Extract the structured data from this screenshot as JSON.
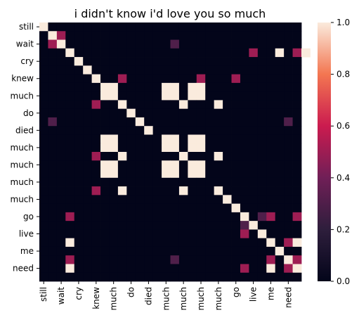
{
  "chart_data": {
    "type": "heatmap",
    "title": "i didn't know i'd love you so much",
    "row_tick_labels": [
      "still",
      "wait",
      "cry",
      "knew",
      "much",
      "do",
      "died",
      "much",
      "much",
      "much",
      "much",
      "go",
      "live",
      "me",
      "need"
    ],
    "col_tick_labels": [
      "still",
      "wait",
      "cry",
      "knew",
      "much",
      "do",
      "died",
      "much",
      "much",
      "much",
      "much",
      "go",
      "live",
      "me",
      "need"
    ],
    "colorbar": {
      "min": 0.0,
      "max": 1.0,
      "tick_labels": [
        "0.0",
        "0.2",
        "0.4",
        "0.6",
        "0.8",
        "1.0"
      ]
    },
    "grid": false,
    "legend": "colorbar-right",
    "rows": [
      "still",
      "",
      "wait",
      "",
      "cry",
      "",
      "knew",
      "",
      "much",
      "",
      "do",
      "",
      "died",
      "",
      "much",
      "",
      "much",
      "",
      "much",
      "",
      "much",
      "",
      "go",
      "",
      "live",
      "",
      "me",
      "",
      "need",
      ""
    ],
    "cols": [
      "still",
      "",
      "wait",
      "",
      "cry",
      "",
      "knew",
      "",
      "much",
      "",
      "do",
      "",
      "died",
      "",
      "much",
      "",
      "much",
      "",
      "much",
      "",
      "much",
      "",
      "go",
      "",
      "live",
      "",
      "me",
      "",
      "need",
      ""
    ],
    "values": [
      [
        1,
        0,
        0,
        0,
        0,
        0,
        0,
        0,
        0,
        0,
        0,
        0,
        0,
        0,
        0,
        0,
        0,
        0,
        0,
        0,
        0,
        0,
        0,
        0,
        0,
        0,
        0,
        0,
        0,
        0
      ],
      [
        0,
        1,
        0.5,
        0,
        0,
        0,
        0,
        0,
        0,
        0,
        0,
        0,
        0,
        0,
        0,
        0,
        0,
        0,
        0,
        0,
        0,
        0,
        0,
        0,
        0,
        0,
        0,
        0,
        0,
        0
      ],
      [
        0,
        0.5,
        1,
        0,
        0,
        0,
        0,
        0,
        0,
        0,
        0,
        0,
        0,
        0,
        0,
        0.3,
        0,
        0,
        0,
        0,
        0,
        0,
        0,
        0,
        0,
        0,
        0,
        0,
        0,
        0
      ],
      [
        0,
        0,
        0,
        1,
        0,
        0,
        0,
        0,
        0,
        0,
        0,
        0,
        0,
        0,
        0,
        0,
        0,
        0,
        0,
        0,
        0,
        0,
        0,
        0,
        0.5,
        0,
        0,
        1,
        0,
        0.5,
        1
      ],
      [
        0,
        0,
        0,
        0,
        1,
        0,
        0,
        0,
        0,
        0,
        0,
        0,
        0,
        0,
        0,
        0,
        0,
        0,
        0,
        0,
        0,
        0,
        0,
        0,
        0,
        0,
        0,
        0,
        0,
        0
      ],
      [
        0,
        0,
        0,
        0,
        0,
        1,
        0,
        0,
        0,
        0,
        0,
        0,
        0,
        0,
        0,
        0,
        0,
        0,
        0,
        0,
        0,
        0,
        0,
        0,
        0,
        0,
        0,
        0,
        0,
        0
      ],
      [
        0,
        0,
        0,
        0,
        0,
        0,
        1,
        0,
        0,
        0.5,
        0,
        0,
        0,
        0,
        0,
        0,
        0,
        0,
        0.5,
        0,
        0,
        0,
        0.5,
        0,
        0,
        0,
        0,
        0,
        0,
        0
      ],
      [
        0,
        0,
        0,
        0,
        0,
        0,
        0,
        1,
        1,
        0,
        0,
        0,
        0,
        0,
        1,
        1,
        0,
        1,
        1,
        0,
        0,
        0,
        0,
        0,
        0,
        0,
        0,
        0,
        0,
        0
      ],
      [
        0,
        0,
        0,
        0,
        0,
        0,
        0,
        1,
        1,
        0,
        0,
        0,
        0,
        0,
        1,
        1,
        0,
        1,
        1,
        0,
        0,
        0,
        0,
        0,
        0,
        0,
        0,
        0,
        0,
        0
      ],
      [
        0,
        0,
        0,
        0,
        0,
        0,
        0.5,
        0,
        0,
        1,
        0,
        0,
        0,
        0,
        0,
        0,
        1,
        0,
        0,
        0,
        1,
        0,
        0,
        0,
        0,
        0,
        0,
        0,
        0,
        0
      ],
      [
        0,
        0,
        0,
        0,
        0,
        0,
        0,
        0,
        0,
        0,
        1,
        0,
        0,
        0,
        0,
        0,
        0,
        0,
        0,
        0,
        0,
        0,
        0,
        0,
        0,
        0,
        0,
        0,
        0,
        0
      ],
      [
        0,
        0.3,
        0,
        0,
        0,
        0,
        0,
        0,
        0,
        0,
        0,
        1,
        0,
        0,
        0,
        0,
        0,
        0,
        0,
        0,
        0,
        0,
        0,
        0,
        0,
        0,
        0,
        0,
        0.3,
        0
      ],
      [
        0,
        0,
        0,
        0,
        0,
        0,
        0,
        0,
        0,
        0,
        0,
        0,
        1,
        0,
        0,
        0,
        0,
        0,
        0,
        0,
        0,
        0,
        0,
        0,
        0,
        0,
        0,
        0,
        0,
        0
      ],
      [
        0,
        0,
        0,
        0,
        0,
        0,
        0,
        1,
        1,
        0,
        0,
        0,
        0,
        0,
        1,
        1,
        0,
        1,
        1,
        0,
        0,
        0,
        0,
        0,
        0,
        0,
        0,
        0,
        0,
        0
      ],
      [
        0,
        0,
        0,
        0,
        0,
        0,
        0,
        1,
        1,
        0,
        0,
        0,
        0,
        0,
        1,
        1,
        0,
        1,
        1,
        0,
        0,
        0,
        0,
        0,
        0,
        0,
        0,
        0,
        0,
        0
      ],
      [
        0,
        0,
        0,
        0,
        0,
        0,
        0.5,
        0,
        0,
        1,
        0,
        0,
        0,
        0,
        0,
        0,
        1,
        0,
        0,
        0,
        1,
        0,
        0,
        0,
        0,
        0,
        0,
        0,
        0,
        0
      ],
      [
        0,
        0,
        0,
        0,
        0,
        0,
        0,
        1,
        1,
        0,
        0,
        0,
        0,
        0,
        1,
        1,
        0,
        1,
        1,
        0,
        0,
        0,
        0,
        0,
        0,
        0,
        0,
        0,
        0,
        0
      ],
      [
        0,
        0,
        0,
        0,
        0,
        0,
        0,
        1,
        1,
        0,
        0,
        0,
        0,
        0,
        1,
        1,
        0,
        1,
        1,
        0,
        0,
        0,
        0,
        0,
        0,
        0,
        0,
        0,
        0,
        0
      ],
      [
        0,
        0,
        0,
        0,
        0,
        0,
        0,
        0,
        0,
        0,
        0,
        0,
        0,
        0,
        0,
        0,
        0,
        0,
        0,
        0,
        0,
        0,
        0,
        0,
        0,
        0,
        0,
        0,
        0,
        0
      ],
      [
        0,
        0,
        0,
        0,
        0,
        0,
        0.5,
        0,
        0,
        1,
        0,
        0,
        0,
        0,
        0,
        0,
        1,
        0,
        0,
        0,
        1,
        0,
        0,
        0,
        0,
        0,
        0,
        0,
        0,
        0
      ],
      [
        0,
        0,
        0,
        0,
        0,
        0,
        0,
        0,
        0,
        0,
        0,
        0,
        0,
        0,
        0,
        0,
        0,
        0,
        0,
        0,
        0,
        1,
        0,
        0,
        0,
        0,
        0,
        0,
        0,
        0
      ],
      [
        0,
        0,
        0,
        0,
        0,
        0,
        0,
        0,
        0,
        0,
        0,
        0,
        0,
        0,
        0,
        0,
        0,
        0,
        0,
        0,
        0,
        0,
        1,
        0,
        0,
        0,
        0,
        0,
        0,
        0
      ],
      [
        0,
        0,
        0,
        0.5,
        0,
        0,
        0,
        0,
        0,
        0,
        0,
        0,
        0,
        0,
        0,
        0,
        0,
        0,
        0,
        0,
        0,
        0,
        0,
        1,
        0,
        0.3,
        0.5,
        0,
        0,
        0.5
      ],
      [
        0,
        0,
        0,
        0,
        0,
        0,
        0,
        0,
        0,
        0,
        0,
        0,
        0,
        0,
        0,
        0,
        0,
        0,
        0,
        0,
        0,
        0,
        0,
        0.3,
        1,
        0,
        0,
        0,
        0,
        0
      ],
      [
        0,
        0,
        0,
        0,
        0,
        0,
        0,
        0,
        0,
        0,
        0,
        0,
        0,
        0,
        0,
        0,
        0,
        0,
        0,
        0,
        0,
        0,
        0,
        0.5,
        0,
        1,
        0,
        0,
        0,
        0
      ],
      [
        0,
        0,
        0,
        1,
        0,
        0,
        0,
        0,
        0,
        0,
        0,
        0,
        0,
        0,
        0,
        0,
        0,
        0,
        0,
        0,
        0,
        0,
        0,
        0,
        0,
        0,
        1,
        0,
        0.5,
        1
      ],
      [
        0,
        0,
        0,
        0,
        0,
        0,
        0,
        0,
        0,
        0,
        0,
        0,
        0,
        0,
        0,
        0,
        0,
        0,
        0,
        0,
        0,
        0,
        0,
        0,
        0,
        0,
        0,
        1,
        0,
        0
      ],
      [
        0,
        0,
        0,
        0.5,
        0,
        0,
        0,
        0,
        0,
        0,
        0,
        0,
        0,
        0,
        0,
        0.3,
        0,
        0,
        0,
        0,
        0,
        0,
        0,
        0,
        0,
        0,
        0.5,
        0,
        1,
        0.5
      ],
      [
        0,
        0,
        0,
        1,
        0,
        0,
        0,
        0,
        0,
        0,
        0,
        0,
        0,
        0,
        0,
        0,
        0,
        0,
        0,
        0,
        0,
        0,
        0,
        0.5,
        0,
        0,
        1,
        0,
        0.5,
        1
      ],
      [
        0,
        0,
        0,
        0,
        0,
        0,
        0,
        0,
        0,
        0,
        0,
        0,
        0,
        0,
        0,
        0,
        0,
        0,
        0,
        0,
        0,
        0,
        0,
        0,
        0,
        0,
        0,
        0,
        0,
        0
      ]
    ]
  }
}
